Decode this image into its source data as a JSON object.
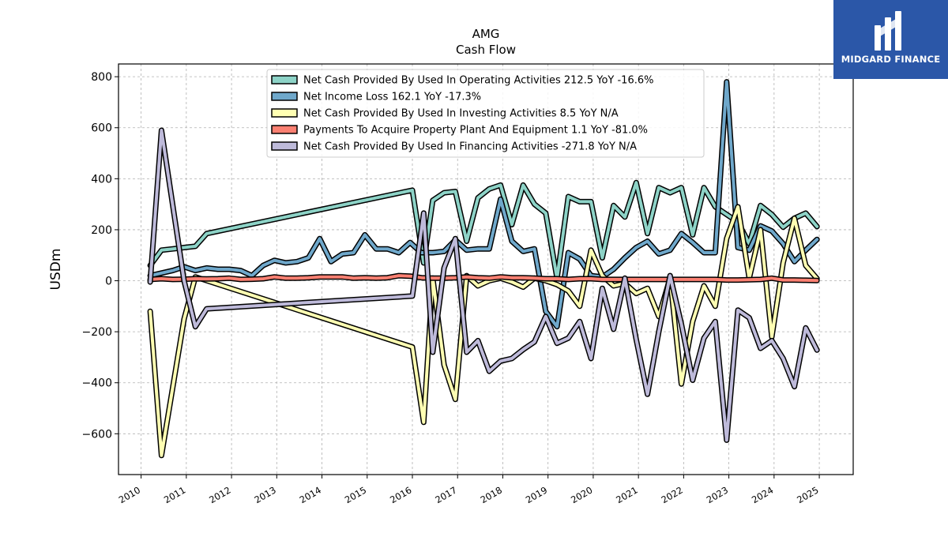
{
  "branding": {
    "name": "MIDGARD FINANCE"
  },
  "chart_data": {
    "type": "line",
    "title": "AMG",
    "subtitle": "Cash Flow",
    "ylabel": "USDm",
    "xlabel": "",
    "xlim": [
      2009.5,
      2025.75
    ],
    "ylim": [
      -760,
      850
    ],
    "x_ticks": [
      "2010",
      "2011",
      "2012",
      "2013",
      "2014",
      "2015",
      "2016",
      "2017",
      "2018",
      "2019",
      "2020",
      "2021",
      "2022",
      "2023",
      "2024",
      "2025"
    ],
    "y_ticks": [
      800,
      600,
      400,
      200,
      0,
      -200,
      -400,
      -600
    ],
    "y_tick_labels": [
      "800",
      "600",
      "400",
      "200",
      "0",
      "−200",
      "−400",
      "−600"
    ],
    "grid": true,
    "legend_position": "top-center",
    "series": [
      {
        "name": "Net Cash Provided By Used In Operating Activities",
        "legend_label": "Net Cash Provided By Used In Operating Activities  212.5 YoY -16.6%",
        "color": "#8dd3c7",
        "points": [
          [
            2010.2,
            60
          ],
          [
            2010.45,
            120
          ],
          [
            2010.7,
            125
          ],
          [
            2010.95,
            130
          ],
          [
            2011.2,
            135
          ],
          [
            2011.45,
            185
          ],
          [
            2016.0,
            355
          ],
          [
            2016.25,
            70
          ],
          [
            2016.45,
            315
          ],
          [
            2016.7,
            345
          ],
          [
            2016.95,
            350
          ],
          [
            2017.2,
            155
          ],
          [
            2017.45,
            325
          ],
          [
            2017.7,
            360
          ],
          [
            2017.95,
            375
          ],
          [
            2018.2,
            220
          ],
          [
            2018.45,
            375
          ],
          [
            2018.7,
            300
          ],
          [
            2018.95,
            265
          ],
          [
            2019.2,
            10
          ],
          [
            2019.45,
            330
          ],
          [
            2019.7,
            310
          ],
          [
            2019.95,
            310
          ],
          [
            2020.2,
            90
          ],
          [
            2020.45,
            295
          ],
          [
            2020.7,
            250
          ],
          [
            2020.95,
            385
          ],
          [
            2021.2,
            185
          ],
          [
            2021.45,
            365
          ],
          [
            2021.7,
            345
          ],
          [
            2021.95,
            365
          ],
          [
            2022.2,
            180
          ],
          [
            2022.45,
            365
          ],
          [
            2022.7,
            290
          ],
          [
            2022.95,
            260
          ],
          [
            2023.2,
            230
          ],
          [
            2023.45,
            145
          ],
          [
            2023.7,
            295
          ],
          [
            2023.95,
            260
          ],
          [
            2024.2,
            210
          ],
          [
            2024.45,
            245
          ],
          [
            2024.7,
            265
          ],
          [
            2024.95,
            212.5
          ]
        ]
      },
      {
        "name": "Net Income Loss",
        "legend_label": "Net Income Loss  162.1 YoY -17.3%",
        "color": "#6fa8cb",
        "points": [
          [
            2010.2,
            20
          ],
          [
            2010.45,
            30
          ],
          [
            2010.7,
            40
          ],
          [
            2010.95,
            55
          ],
          [
            2011.2,
            40
          ],
          [
            2011.45,
            50
          ],
          [
            2011.7,
            45
          ],
          [
            2011.95,
            45
          ],
          [
            2012.2,
            40
          ],
          [
            2012.45,
            20
          ],
          [
            2012.7,
            60
          ],
          [
            2012.95,
            80
          ],
          [
            2013.2,
            70
          ],
          [
            2013.45,
            75
          ],
          [
            2013.7,
            90
          ],
          [
            2013.95,
            165
          ],
          [
            2014.2,
            75
          ],
          [
            2014.45,
            105
          ],
          [
            2014.7,
            110
          ],
          [
            2014.95,
            180
          ],
          [
            2015.2,
            125
          ],
          [
            2015.45,
            125
          ],
          [
            2015.7,
            110
          ],
          [
            2015.95,
            150
          ],
          [
            2016.2,
            110
          ],
          [
            2016.45,
            110
          ],
          [
            2016.7,
            115
          ],
          [
            2016.95,
            160
          ],
          [
            2017.2,
            120
          ],
          [
            2017.45,
            125
          ],
          [
            2017.7,
            125
          ],
          [
            2017.95,
            320
          ],
          [
            2018.2,
            155
          ],
          [
            2018.45,
            115
          ],
          [
            2018.7,
            125
          ],
          [
            2018.95,
            -120
          ],
          [
            2019.2,
            -180
          ],
          [
            2019.45,
            110
          ],
          [
            2019.7,
            85
          ],
          [
            2019.95,
            20
          ],
          [
            2020.2,
            15
          ],
          [
            2020.45,
            45
          ],
          [
            2020.7,
            90
          ],
          [
            2020.95,
            130
          ],
          [
            2021.2,
            155
          ],
          [
            2021.45,
            105
          ],
          [
            2021.7,
            120
          ],
          [
            2021.95,
            185
          ],
          [
            2022.2,
            150
          ],
          [
            2022.45,
            110
          ],
          [
            2022.7,
            110
          ],
          [
            2022.95,
            780
          ],
          [
            2023.2,
            130
          ],
          [
            2023.45,
            120
          ],
          [
            2023.7,
            215
          ],
          [
            2023.95,
            195
          ],
          [
            2024.2,
            145
          ],
          [
            2024.45,
            75
          ],
          [
            2024.7,
            120
          ],
          [
            2024.95,
            162.1
          ]
        ]
      },
      {
        "name": "Net Cash Provided By Used In Investing Activities",
        "legend_label": "Net Cash Provided By Used In Investing Activities  8.5 YoY N/A",
        "color": "#ffffb3",
        "points": [
          [
            2010.2,
            -120
          ],
          [
            2010.45,
            -685
          ],
          [
            2010.95,
            -150
          ],
          [
            2011.2,
            15
          ],
          [
            2016.0,
            -260
          ],
          [
            2016.25,
            -555
          ],
          [
            2016.45,
            10
          ],
          [
            2016.7,
            -330
          ],
          [
            2016.95,
            -465
          ],
          [
            2017.2,
            20
          ],
          [
            2017.45,
            -20
          ],
          [
            2017.7,
            0
          ],
          [
            2017.95,
            10
          ],
          [
            2018.2,
            -5
          ],
          [
            2018.45,
            -25
          ],
          [
            2018.7,
            10
          ],
          [
            2018.95,
            0
          ],
          [
            2019.2,
            -15
          ],
          [
            2019.45,
            -40
          ],
          [
            2019.7,
            -100
          ],
          [
            2019.95,
            120
          ],
          [
            2020.2,
            20
          ],
          [
            2020.45,
            -20
          ],
          [
            2020.7,
            -10
          ],
          [
            2020.95,
            -50
          ],
          [
            2021.2,
            -30
          ],
          [
            2021.45,
            -140
          ],
          [
            2021.7,
            10
          ],
          [
            2021.95,
            -405
          ],
          [
            2022.2,
            -160
          ],
          [
            2022.45,
            -20
          ],
          [
            2022.7,
            -100
          ],
          [
            2022.95,
            165
          ],
          [
            2023.2,
            290
          ],
          [
            2023.45,
            10
          ],
          [
            2023.7,
            200
          ],
          [
            2023.95,
            -220
          ],
          [
            2024.2,
            70
          ],
          [
            2024.45,
            245
          ],
          [
            2024.7,
            60
          ],
          [
            2024.95,
            8.5
          ]
        ]
      },
      {
        "name": "Payments To Acquire Property Plant And Equipment",
        "legend_label": "Payments To Acquire Property Plant And Equipment  1.1 YoY -81.0%",
        "color": "#fb8072",
        "points": [
          [
            2010.2,
            5
          ],
          [
            2010.45,
            8
          ],
          [
            2010.7,
            5
          ],
          [
            2010.95,
            6
          ],
          [
            2011.2,
            8
          ],
          [
            2011.45,
            7
          ],
          [
            2011.7,
            8
          ],
          [
            2011.95,
            10
          ],
          [
            2012.2,
            5
          ],
          [
            2012.45,
            6
          ],
          [
            2012.7,
            8
          ],
          [
            2012.95,
            15
          ],
          [
            2013.2,
            10
          ],
          [
            2013.45,
            10
          ],
          [
            2013.7,
            12
          ],
          [
            2013.95,
            15
          ],
          [
            2014.2,
            15
          ],
          [
            2014.45,
            15
          ],
          [
            2014.7,
            10
          ],
          [
            2014.95,
            12
          ],
          [
            2015.2,
            10
          ],
          [
            2015.45,
            12
          ],
          [
            2015.7,
            20
          ],
          [
            2015.95,
            18
          ],
          [
            2016.2,
            12
          ],
          [
            2016.45,
            10
          ],
          [
            2016.7,
            10
          ],
          [
            2016.95,
            12
          ],
          [
            2017.2,
            15
          ],
          [
            2017.45,
            12
          ],
          [
            2017.7,
            10
          ],
          [
            2017.95,
            15
          ],
          [
            2018.2,
            12
          ],
          [
            2018.45,
            12
          ],
          [
            2018.7,
            10
          ],
          [
            2018.95,
            8
          ],
          [
            2019.2,
            8
          ],
          [
            2019.45,
            5
          ],
          [
            2019.7,
            8
          ],
          [
            2019.95,
            8
          ],
          [
            2020.2,
            5
          ],
          [
            2020.45,
            5
          ],
          [
            2020.7,
            5
          ],
          [
            2020.95,
            5
          ],
          [
            2021.2,
            5
          ],
          [
            2021.45,
            5
          ],
          [
            2021.7,
            5
          ],
          [
            2021.95,
            5
          ],
          [
            2022.2,
            5
          ],
          [
            2022.45,
            5
          ],
          [
            2022.7,
            5
          ],
          [
            2022.95,
            3
          ],
          [
            2023.2,
            3
          ],
          [
            2023.45,
            4
          ],
          [
            2023.7,
            5
          ],
          [
            2023.95,
            10
          ],
          [
            2024.2,
            3
          ],
          [
            2024.45,
            3
          ],
          [
            2024.7,
            2
          ],
          [
            2024.95,
            1.1
          ]
        ]
      },
      {
        "name": "Net Cash Provided By Used In Financing Activities",
        "legend_label": "Net Cash Provided By Used In Financing Activities  -271.8 YoY N/A",
        "color": "#bebada",
        "points": [
          [
            2010.2,
            -5
          ],
          [
            2010.45,
            590
          ],
          [
            2010.95,
            0
          ],
          [
            2011.2,
            -180
          ],
          [
            2011.45,
            -110
          ],
          [
            2016.0,
            -60
          ],
          [
            2016.25,
            265
          ],
          [
            2016.45,
            -280
          ],
          [
            2016.7,
            50
          ],
          [
            2016.95,
            165
          ],
          [
            2017.2,
            -280
          ],
          [
            2017.45,
            -235
          ],
          [
            2017.7,
            -355
          ],
          [
            2017.95,
            -315
          ],
          [
            2018.2,
            -305
          ],
          [
            2018.45,
            -270
          ],
          [
            2018.7,
            -240
          ],
          [
            2018.95,
            -140
          ],
          [
            2019.2,
            -245
          ],
          [
            2019.45,
            -225
          ],
          [
            2019.7,
            -160
          ],
          [
            2019.95,
            -305
          ],
          [
            2020.2,
            -30
          ],
          [
            2020.45,
            -190
          ],
          [
            2020.7,
            10
          ],
          [
            2020.95,
            -230
          ],
          [
            2021.2,
            -445
          ],
          [
            2021.45,
            -200
          ],
          [
            2021.7,
            20
          ],
          [
            2021.95,
            -170
          ],
          [
            2022.2,
            -390
          ],
          [
            2022.45,
            -225
          ],
          [
            2022.7,
            -160
          ],
          [
            2022.95,
            -625
          ],
          [
            2023.2,
            -115
          ],
          [
            2023.45,
            -145
          ],
          [
            2023.7,
            -265
          ],
          [
            2023.95,
            -235
          ],
          [
            2024.2,
            -305
          ],
          [
            2024.45,
            -415
          ],
          [
            2024.7,
            -185
          ],
          [
            2024.95,
            -271.8
          ]
        ]
      }
    ]
  }
}
